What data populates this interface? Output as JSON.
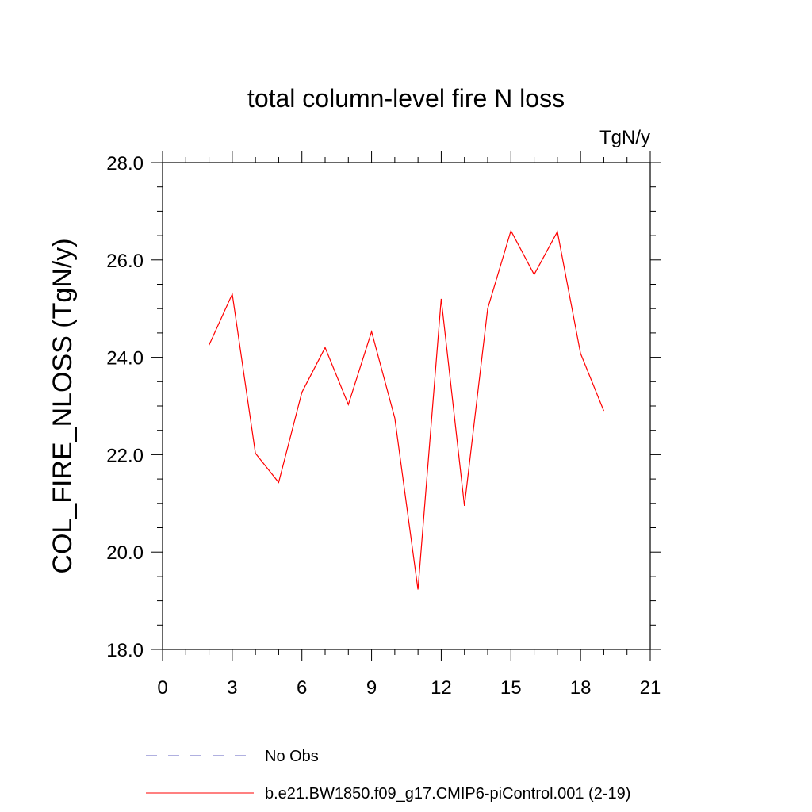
{
  "chart_data": {
    "type": "line",
    "title": "total column-level fire N loss",
    "units": "TgN/y",
    "ylabel": "COL_FIRE_NLOSS  (TgN/y)",
    "xlabel": "",
    "xlim": [
      0,
      21
    ],
    "ylim": [
      18.0,
      28.0
    ],
    "x_ticks": [
      0,
      3,
      6,
      9,
      12,
      15,
      18,
      21
    ],
    "x_tick_labels": [
      "0",
      "3",
      "6",
      "9",
      "12",
      "15",
      "18",
      "21"
    ],
    "y_ticks": [
      18.0,
      20.0,
      22.0,
      24.0,
      26.0,
      28.0
    ],
    "y_tick_labels": [
      "18.0",
      "20.0",
      "22.0",
      "24.0",
      "26.0",
      "28.0"
    ],
    "grid": false,
    "legend_position": "bottom",
    "series": [
      {
        "name": "b.e21.BW1850.f09_g17.CMIP6-piControl.001 (2-19)",
        "color": "#ff0000",
        "line_style": "solid",
        "x": [
          2,
          3,
          4,
          5,
          6,
          7,
          8,
          9,
          10,
          11,
          12,
          13,
          14,
          15,
          16,
          17,
          18,
          19
        ],
        "values": [
          24.25,
          25.3,
          22.03,
          21.43,
          23.28,
          24.2,
          23.03,
          24.53,
          22.75,
          19.23,
          25.2,
          20.95,
          25.0,
          26.6,
          25.7,
          26.58,
          24.08,
          22.9
        ]
      }
    ],
    "legend": [
      {
        "label": "No Obs",
        "color": "#6060c0",
        "line_style": "dashed"
      },
      {
        "label": "b.e21.BW1850.f09_g17.CMIP6-piControl.001 (2-19)",
        "color": "#ff0000",
        "line_style": "solid"
      }
    ]
  }
}
